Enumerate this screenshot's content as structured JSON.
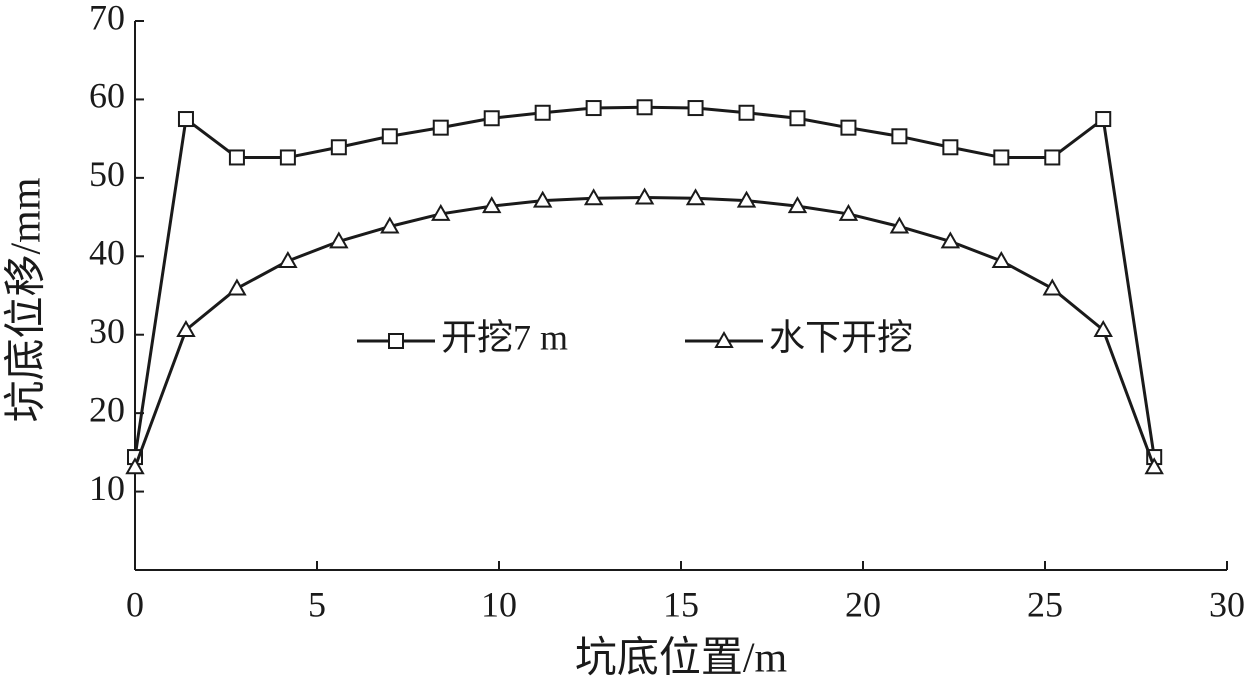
{
  "chart_data": {
    "type": "line",
    "x_label": "坑底位置/m",
    "y_label": "坑底位移/mm",
    "x": [
      0,
      1.4,
      2.8,
      4.2,
      5.6,
      7,
      8.4,
      9.8,
      11.2,
      12.6,
      14,
      15.4,
      16.8,
      18.2,
      19.6,
      21,
      22.4,
      23.8,
      25.2,
      26.6,
      28
    ],
    "series": [
      {
        "name": "开挖7 m",
        "color": "#1a1a1a",
        "marker": "square",
        "values": [
          14.4,
          57.5,
          52.6,
          52.6,
          53.9,
          55.3,
          56.4,
          57.6,
          58.3,
          58.9,
          59.0,
          58.9,
          58.3,
          57.6,
          56.4,
          55.3,
          53.9,
          52.6,
          52.6,
          57.5,
          14.4
        ]
      },
      {
        "name": "水下开挖",
        "color": "#1a1a1a",
        "marker": "triangle",
        "values": [
          13.1,
          30.6,
          35.9,
          39.4,
          41.9,
          43.8,
          45.4,
          46.4,
          47.1,
          47.4,
          47.5,
          47.4,
          47.1,
          46.4,
          45.4,
          43.8,
          41.9,
          39.4,
          35.9,
          30.6,
          13.1
        ]
      }
    ],
    "xlim": [
      0,
      30
    ],
    "xticks": [
      0,
      5,
      10,
      15,
      20,
      25,
      30
    ],
    "ylim": [
      0,
      70
    ],
    "yticks": [
      10,
      20,
      30,
      40,
      50,
      60,
      70
    ],
    "grid": false,
    "legend": "center"
  }
}
